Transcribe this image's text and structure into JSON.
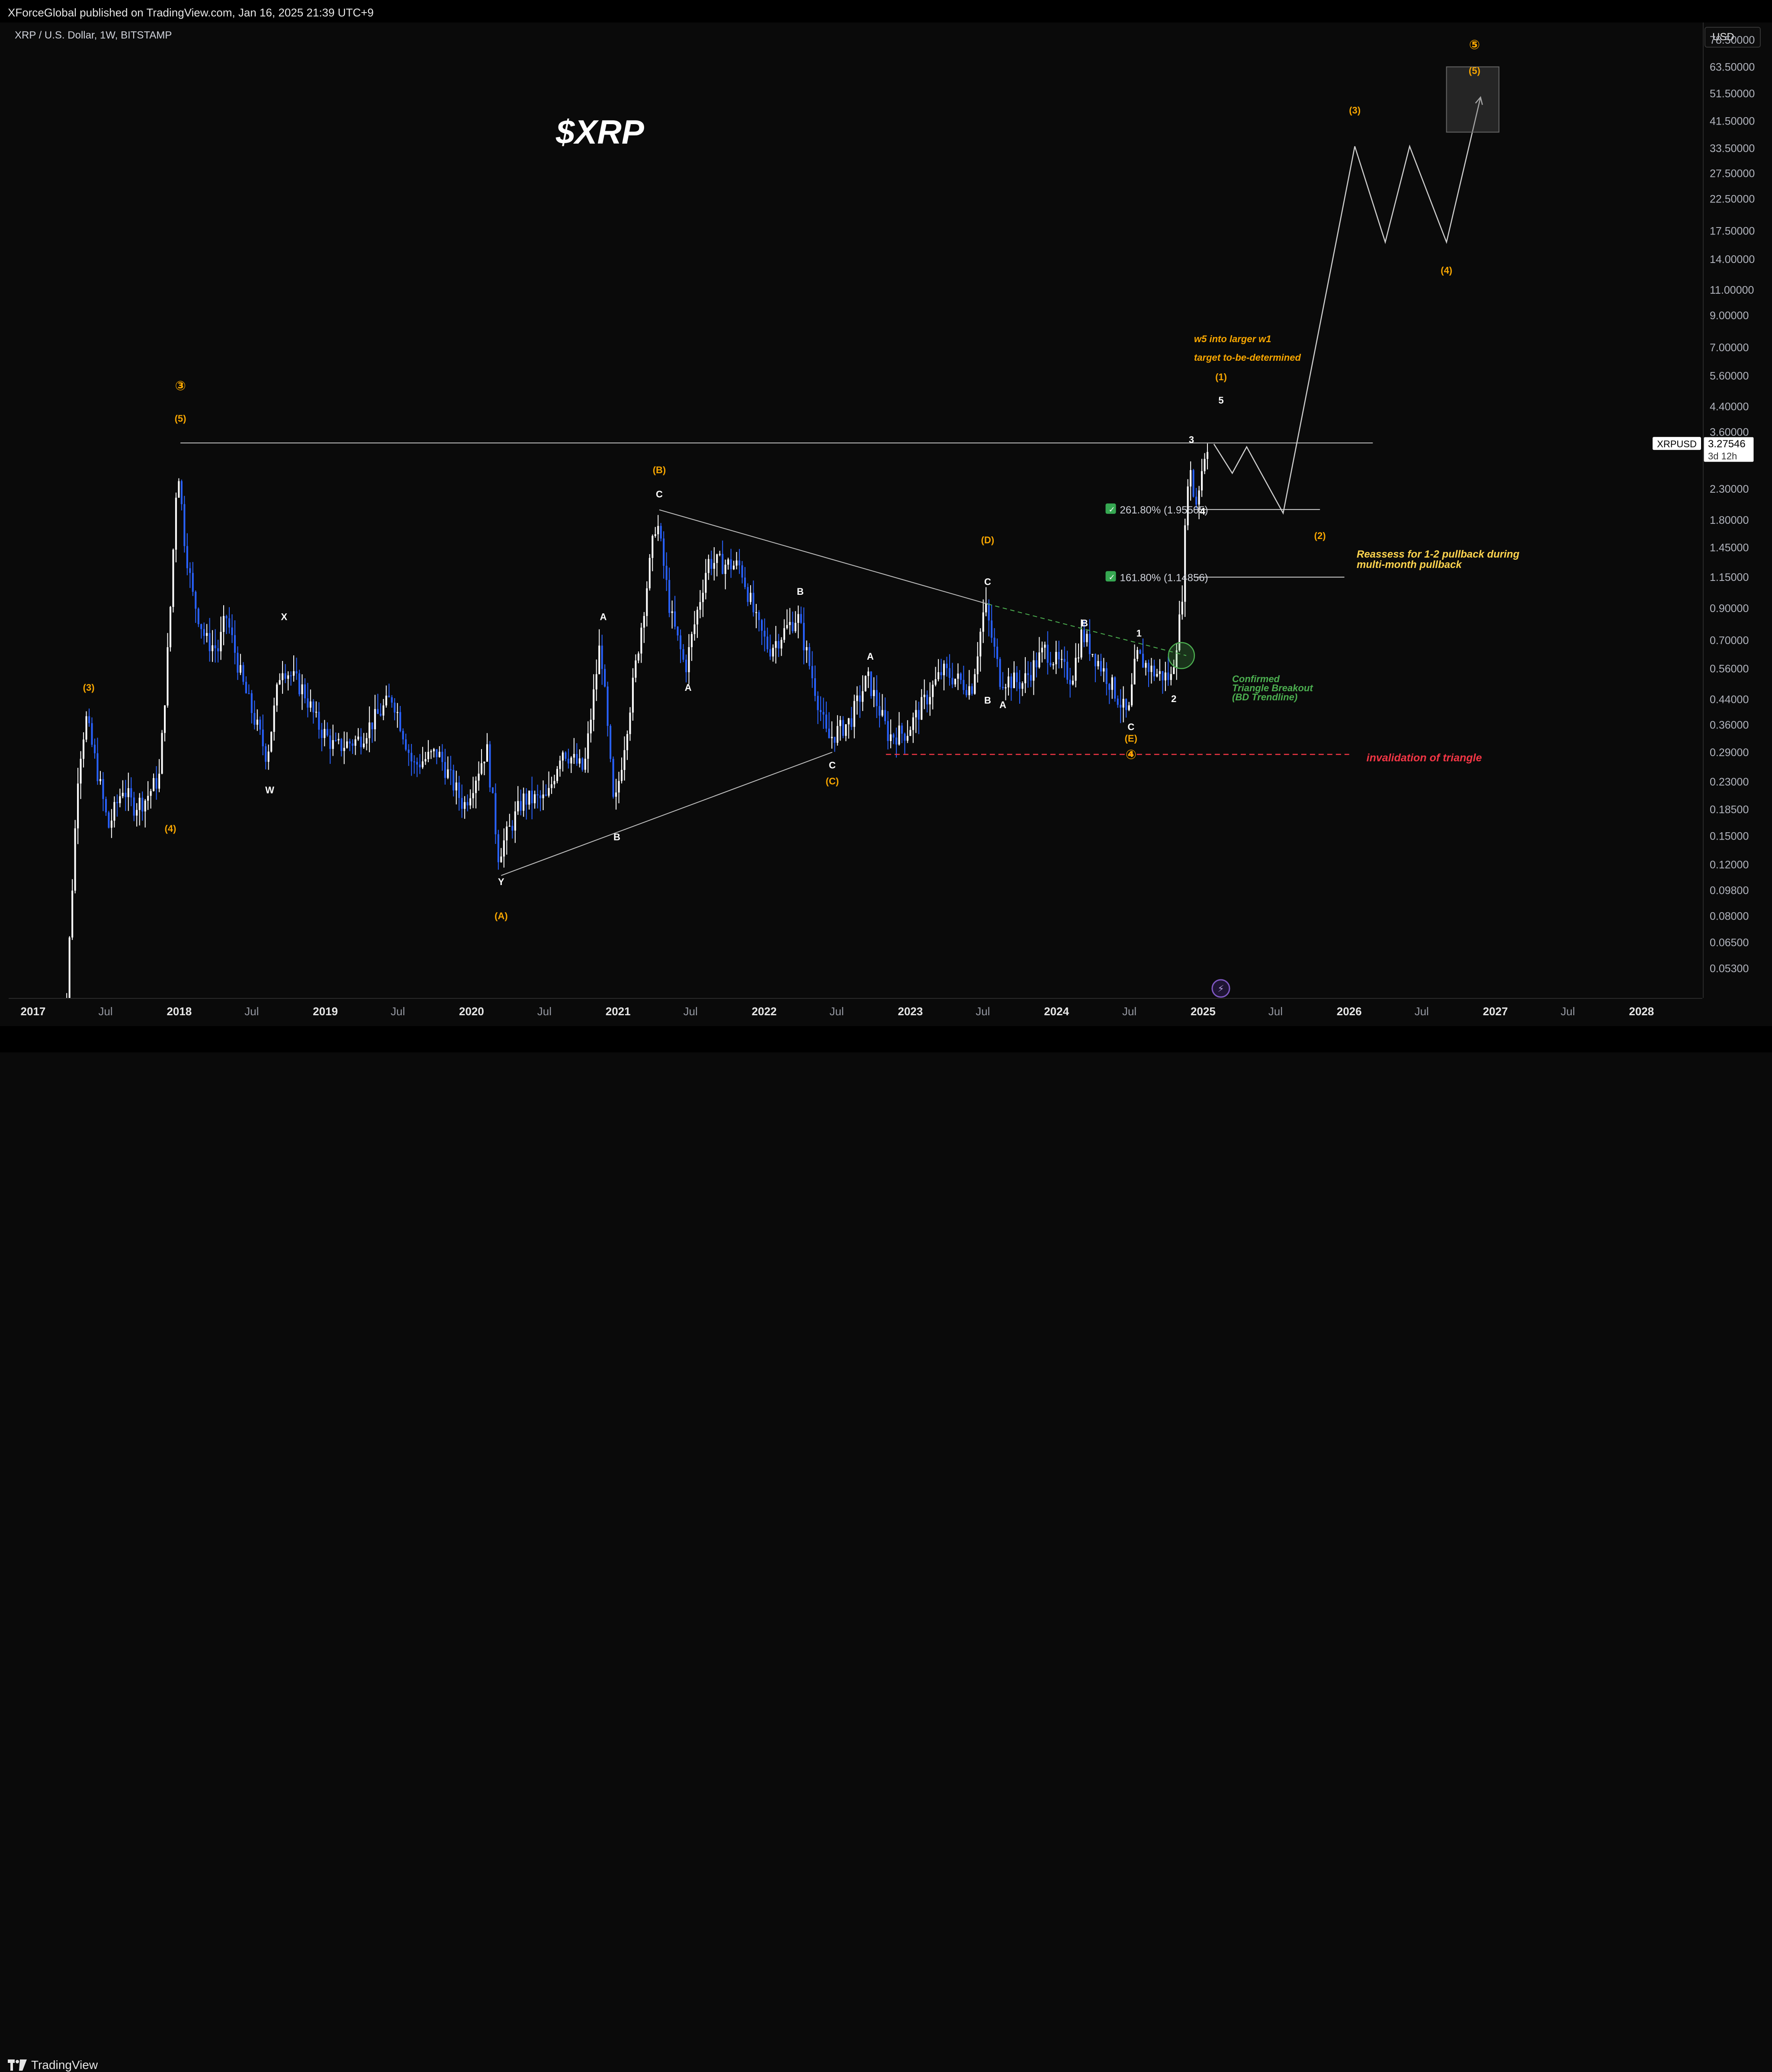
{
  "header": {
    "published_text": "XForceGlobal published on TradingView.com, Jan 16, 2025 21:39 UTC+9"
  },
  "symbol": {
    "title": "XRP / U.S. Dollar, 1W, BITSTAMP",
    "watermark": "$XRP",
    "ticker": "XRPUSD",
    "last_price": "3.27546",
    "countdown": "3d 12h",
    "currency": "USD"
  },
  "footer": {
    "brand": "TradingView"
  },
  "colors": {
    "background": "#0a0a0a",
    "bull": "#ffffff",
    "bear": "#2962ff",
    "wave_label": "#f7a600",
    "invalidation": "#f23645",
    "breakout": "#4caf50",
    "text": "#d1d4dc"
  },
  "chart_data": {
    "type": "candlestick",
    "title": "$XRP",
    "ylabel": "",
    "y_scale": "log",
    "ylim": [
      0.042,
      90
    ],
    "xlim": [
      "2016-11-01",
      "2028-06-01"
    ],
    "y_ticks": [
      "78.50000",
      "63.50000",
      "51.50000",
      "41.50000",
      "33.50000",
      "27.50000",
      "22.50000",
      "17.50000",
      "14.00000",
      "11.00000",
      "9.00000",
      "7.00000",
      "5.60000",
      "4.40000",
      "3.60000",
      "2.30000",
      "1.80000",
      "1.45000",
      "1.15000",
      "0.90000",
      "0.70000",
      "0.56000",
      "0.44000",
      "0.36000",
      "0.29000",
      "0.23000",
      "0.18500",
      "0.15000",
      "0.12000",
      "0.09800",
      "0.08000",
      "0.06500",
      "0.05300"
    ],
    "x_ticks": [
      {
        "label": "2017",
        "date": "2017-01-01",
        "major": true
      },
      {
        "label": "Jul",
        "date": "2017-07-01",
        "major": false
      },
      {
        "label": "2018",
        "date": "2018-01-01",
        "major": true
      },
      {
        "label": "Jul",
        "date": "2018-07-01",
        "major": false
      },
      {
        "label": "2019",
        "date": "2019-01-01",
        "major": true
      },
      {
        "label": "Jul",
        "date": "2019-07-01",
        "major": false
      },
      {
        "label": "2020",
        "date": "2020-01-01",
        "major": true
      },
      {
        "label": "Jul",
        "date": "2020-07-01",
        "major": false
      },
      {
        "label": "2021",
        "date": "2021-01-01",
        "major": true
      },
      {
        "label": "Jul",
        "date": "2021-07-01",
        "major": false
      },
      {
        "label": "2022",
        "date": "2022-01-01",
        "major": true
      },
      {
        "label": "Jul",
        "date": "2022-07-01",
        "major": false
      },
      {
        "label": "2023",
        "date": "2023-01-01",
        "major": true
      },
      {
        "label": "Jul",
        "date": "2023-07-01",
        "major": false
      },
      {
        "label": "2024",
        "date": "2024-01-01",
        "major": true
      },
      {
        "label": "Jul",
        "date": "2024-07-01",
        "major": false
      },
      {
        "label": "2025",
        "date": "2025-01-01",
        "major": true
      },
      {
        "label": "Jul",
        "date": "2025-07-01",
        "major": false
      },
      {
        "label": "2026",
        "date": "2026-01-01",
        "major": true
      },
      {
        "label": "Jul",
        "date": "2026-07-01",
        "major": false
      },
      {
        "label": "2027",
        "date": "2027-01-01",
        "major": true
      },
      {
        "label": "Jul",
        "date": "2027-07-01",
        "major": false
      },
      {
        "label": "2028",
        "date": "2028-01-01",
        "major": true
      }
    ],
    "price_path": [
      [
        "2017-03-05",
        0.006
      ],
      [
        "2017-04-01",
        0.04
      ],
      [
        "2017-05-01",
        0.26
      ],
      [
        "2017-05-20",
        0.38
      ],
      [
        "2017-06-15",
        0.26
      ],
      [
        "2017-07-15",
        0.16
      ],
      [
        "2017-08-20",
        0.22
      ],
      [
        "2017-09-15",
        0.19
      ],
      [
        "2017-10-15",
        0.2
      ],
      [
        "2017-11-20",
        0.24
      ],
      [
        "2017-12-15",
        0.8
      ],
      [
        "2018-01-04",
        2.9
      ],
      [
        "2018-01-20",
        1.6
      ],
      [
        "2018-02-10",
        1.0
      ],
      [
        "2018-03-15",
        0.7
      ],
      [
        "2018-04-15",
        0.65
      ],
      [
        "2018-05-05",
        0.85
      ],
      [
        "2018-06-15",
        0.5
      ],
      [
        "2018-08-15",
        0.28
      ],
      [
        "2018-09-20",
        0.58
      ],
      [
        "2018-11-15",
        0.47
      ],
      [
        "2018-12-20",
        0.36
      ],
      [
        "2019-02-01",
        0.3
      ],
      [
        "2019-04-01",
        0.32
      ],
      [
        "2019-06-25",
        0.45
      ],
      [
        "2019-08-15",
        0.26
      ],
      [
        "2019-10-15",
        0.29
      ],
      [
        "2019-12-20",
        0.19
      ],
      [
        "2020-02-15",
        0.3
      ],
      [
        "2020-03-15",
        0.13
      ],
      [
        "2020-05-15",
        0.2
      ],
      [
        "2020-07-15",
        0.2
      ],
      [
        "2020-08-20",
        0.3
      ],
      [
        "2020-10-15",
        0.25
      ],
      [
        "2020-11-25",
        0.7
      ],
      [
        "2020-12-29",
        0.18
      ],
      [
        "2021-02-15",
        0.5
      ],
      [
        "2021-04-14",
        1.85
      ],
      [
        "2021-05-20",
        0.85
      ],
      [
        "2021-06-25",
        0.56
      ],
      [
        "2021-08-20",
        1.3
      ],
      [
        "2021-11-10",
        1.25
      ],
      [
        "2021-12-20",
        0.8
      ],
      [
        "2022-01-20",
        0.65
      ],
      [
        "2022-04-01",
        0.85
      ],
      [
        "2022-06-15",
        0.32
      ],
      [
        "2022-08-10",
        0.37
      ],
      [
        "2022-09-23",
        0.52
      ],
      [
        "2022-11-15",
        0.33
      ],
      [
        "2022-12-30",
        0.34
      ],
      [
        "2023-03-29",
        0.55
      ],
      [
        "2023-06-10",
        0.48
      ],
      [
        "2023-07-13",
        0.93
      ],
      [
        "2023-08-20",
        0.52
      ],
      [
        "2023-10-15",
        0.5
      ],
      [
        "2023-12-10",
        0.65
      ],
      [
        "2024-02-15",
        0.52
      ],
      [
        "2024-03-11",
        0.74
      ],
      [
        "2024-05-15",
        0.52
      ],
      [
        "2024-07-05",
        0.38
      ],
      [
        "2024-07-25",
        0.62
      ],
      [
        "2024-09-10",
        0.54
      ],
      [
        "2024-10-20",
        0.52
      ],
      [
        "2024-11-15",
        0.9
      ],
      [
        "2024-12-03",
        2.9
      ],
      [
        "2024-12-20",
        2.0
      ],
      [
        "2025-01-16",
        3.27546
      ]
    ],
    "resistance": {
      "price": 3.3,
      "from": "2018-01-04",
      "to": "2026-03-01"
    },
    "projection": [
      [
        "2025-01-28",
        3.27
      ],
      [
        "2025-03-15",
        2.6
      ],
      [
        "2025-04-20",
        3.2
      ],
      [
        "2025-07-20",
        1.9
      ],
      [
        "2026-01-15",
        34
      ],
      [
        "2026-04-01",
        16
      ],
      [
        "2026-06-01",
        34
      ],
      [
        "2026-09-01",
        16
      ],
      [
        "2026-11-25",
        50
      ]
    ],
    "target_box": {
      "from": "2026-09-01",
      "to": "2027-01-10",
      "low": 38,
      "high": 63.5
    },
    "fib_levels": [
      {
        "label": "261.80% (1.95505)",
        "price": 1.95505,
        "from": "2024-12-10",
        "to": "2025-10-20"
      },
      {
        "label": "161.80% (1.14856)",
        "price": 1.14856,
        "from": "2024-12-10",
        "to": "2025-12-20"
      }
    ],
    "invalidation": {
      "price": 0.285,
      "from": "2022-11-01",
      "to": "2026-01-01",
      "label": "invalidation of triangle"
    },
    "triangle_lines": [
      [
        [
          "2021-04-14",
          1.95
        ],
        [
          "2023-07-13",
          0.93
        ]
      ],
      [
        [
          "2020-03-15",
          0.11
        ],
        [
          "2022-06-20",
          0.29
        ]
      ],
      [
        [
          "2023-07-13",
          0.93
        ],
        [
          "2024-11-20",
          0.62
        ]
      ]
    ],
    "breakout_circle": {
      "date": "2024-11-08",
      "price": 0.62
    },
    "wave_labels": [
      {
        "t": "③",
        "d": "2018-01-04",
        "p": 5.0,
        "c": "o",
        "s": 30
      },
      {
        "t": "(5)",
        "d": "2018-01-04",
        "p": 3.9,
        "c": "o"
      },
      {
        "t": "(3)",
        "d": "2017-05-20",
        "p": 0.47,
        "c": "o"
      },
      {
        "t": "(4)",
        "d": "2017-12-10",
        "p": 0.155,
        "c": "o"
      },
      {
        "t": "X",
        "d": "2018-09-20",
        "p": 0.82,
        "c": "w"
      },
      {
        "t": "W",
        "d": "2018-08-15",
        "p": 0.21,
        "c": "w"
      },
      {
        "t": "Y",
        "d": "2020-03-15",
        "p": 0.102,
        "c": "w"
      },
      {
        "t": "(A)",
        "d": "2020-03-15",
        "p": 0.078,
        "c": "o"
      },
      {
        "t": "A",
        "d": "2020-11-25",
        "p": 0.82,
        "c": "w"
      },
      {
        "t": "B",
        "d": "2020-12-29",
        "p": 0.145,
        "c": "w"
      },
      {
        "t": "(B)",
        "d": "2021-04-14",
        "p": 2.6,
        "c": "o"
      },
      {
        "t": "C",
        "d": "2021-04-14",
        "p": 2.15,
        "c": "w"
      },
      {
        "t": "A",
        "d": "2021-06-25",
        "p": 0.47,
        "c": "w"
      },
      {
        "t": "B",
        "d": "2022-04-01",
        "p": 1.0,
        "c": "w"
      },
      {
        "t": "C",
        "d": "2022-06-20",
        "p": 0.255,
        "c": "w"
      },
      {
        "t": "(C)",
        "d": "2022-06-20",
        "p": 0.225,
        "c": "o"
      },
      {
        "t": "A",
        "d": "2022-09-23",
        "p": 0.6,
        "c": "w"
      },
      {
        "t": "B",
        "d": "2023-07-13",
        "p": 0.425,
        "c": "w"
      },
      {
        "t": "(D)",
        "d": "2023-07-13",
        "p": 1.5,
        "c": "o"
      },
      {
        "t": "C",
        "d": "2023-07-13",
        "p": 1.08,
        "c": "w"
      },
      {
        "t": "A",
        "d": "2023-08-20",
        "p": 0.41,
        "c": "w"
      },
      {
        "t": "B",
        "d": "2024-03-11",
        "p": 0.78,
        "c": "w"
      },
      {
        "t": "C",
        "d": "2024-07-05",
        "p": 0.345,
        "c": "w"
      },
      {
        "t": "(E)",
        "d": "2024-07-05",
        "p": 0.315,
        "c": "o"
      },
      {
        "t": "④",
        "d": "2024-07-05",
        "p": 0.275,
        "c": "o",
        "s": 30
      },
      {
        "t": "1",
        "d": "2024-07-25",
        "p": 0.72,
        "c": "w"
      },
      {
        "t": "2",
        "d": "2024-10-20",
        "p": 0.43,
        "c": "w"
      },
      {
        "t": "3",
        "d": "2024-12-03",
        "p": 3.3,
        "c": "w"
      },
      {
        "t": "4",
        "d": "2024-12-31",
        "p": 1.88,
        "c": "w"
      },
      {
        "t": "(1)",
        "d": "2025-02-15",
        "p": 5.4,
        "c": "o"
      },
      {
        "t": "5",
        "d": "2025-02-15",
        "p": 4.5,
        "c": "w"
      },
      {
        "t": "(2)",
        "d": "2025-10-20",
        "p": 1.55,
        "c": "o"
      },
      {
        "t": "(3)",
        "d": "2026-01-15",
        "p": 44,
        "c": "o"
      },
      {
        "t": "(4)",
        "d": "2026-09-01",
        "p": 12.5,
        "c": "o"
      },
      {
        "t": "⑤",
        "d": "2026-11-10",
        "p": 73,
        "c": "o",
        "s": 30
      },
      {
        "t": "(5)",
        "d": "2026-11-10",
        "p": 60,
        "c": "o"
      }
    ],
    "annotations": {
      "w5_line1": "w5 into larger w1",
      "w5_line2": "target to-be-determined",
      "reassess_line1": "Reassess for 1-2 pullback during",
      "reassess_line2": "multi-month pullback",
      "breakout_line1": "Confirmed",
      "breakout_line2": "Triangle Breakout",
      "breakout_line3": "(BD Trendline)"
    }
  }
}
